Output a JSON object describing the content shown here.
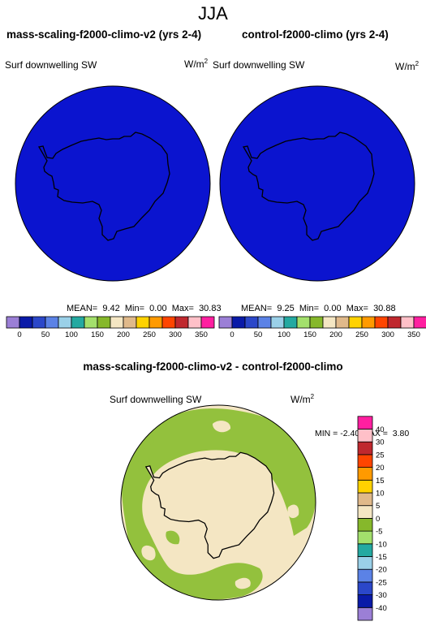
{
  "figure": {
    "season_title": "JJA",
    "diff_title": "mass-scaling-f2000-climo-v2 - control-f2000-climo"
  },
  "panels": [
    {
      "title": "mass-scaling-f2000-climo-v2 (yrs 2-4)",
      "variable": "Surf downwelling SW",
      "units_base": "W/m",
      "units_exp": "2",
      "stats": {
        "mean_label": "MEAN=",
        "mean": "9.42",
        "min_label": "Min=",
        "min": "0.00",
        "max_label": "Max=",
        "max": "30.83"
      }
    },
    {
      "title": "control-f2000-climo (yrs 2-4)",
      "variable": "Surf downwelling SW",
      "units_base": "W/m",
      "units_exp": "2",
      "stats": {
        "mean_label": "MEAN=",
        "mean": "9.25",
        "min_label": "Min=",
        "min": "0.00",
        "max_label": "Max=",
        "max": "30.88"
      }
    }
  ],
  "diff_panel": {
    "variable": "Surf downwelling SW",
    "units_base": "W/m",
    "units_exp": "2",
    "min_label": "MIN =",
    "min": "-2.40",
    "max_label": "MAX =",
    "max": "3.80"
  },
  "top_colorbar": {
    "colors": [
      "#9b7fd6",
      "#0a1aa8",
      "#2b47c9",
      "#5b82e6",
      "#9ad0e8",
      "#24a9a1",
      "#a3e06c",
      "#86b82b",
      "#f4e6c3",
      "#e0b98a",
      "#ffd200",
      "#ff9a00",
      "#ff4500",
      "#c0282e",
      "#ffc0c8",
      "#ff1fa0"
    ],
    "labels": [
      "0",
      "50",
      "100",
      "150",
      "200",
      "250",
      "300",
      "350"
    ]
  },
  "diff_colorbar": {
    "colors": [
      "#9b7fd6",
      "#0a1aa8",
      "#2b47c9",
      "#5b82e6",
      "#9ad0e8",
      "#24a9a1",
      "#a3e06c",
      "#86b82b",
      "#f4e6c3",
      "#e0b98a",
      "#ffd200",
      "#ff9a00",
      "#ff4500",
      "#c0282e",
      "#ffc0c8",
      "#ff1fa0"
    ],
    "labels": [
      "-40",
      "-30",
      "-25",
      "-20",
      "-15",
      "-10",
      "-5",
      "0",
      "5",
      "10",
      "15",
      "20",
      "25",
      "30",
      "40"
    ]
  },
  "map_colors": {
    "field_blue": "#0b14cf",
    "edge_blue": "#4f78e8",
    "diff_background": "#f4e6c3",
    "diff_green": "#93c13d",
    "coastline": "#000000"
  }
}
